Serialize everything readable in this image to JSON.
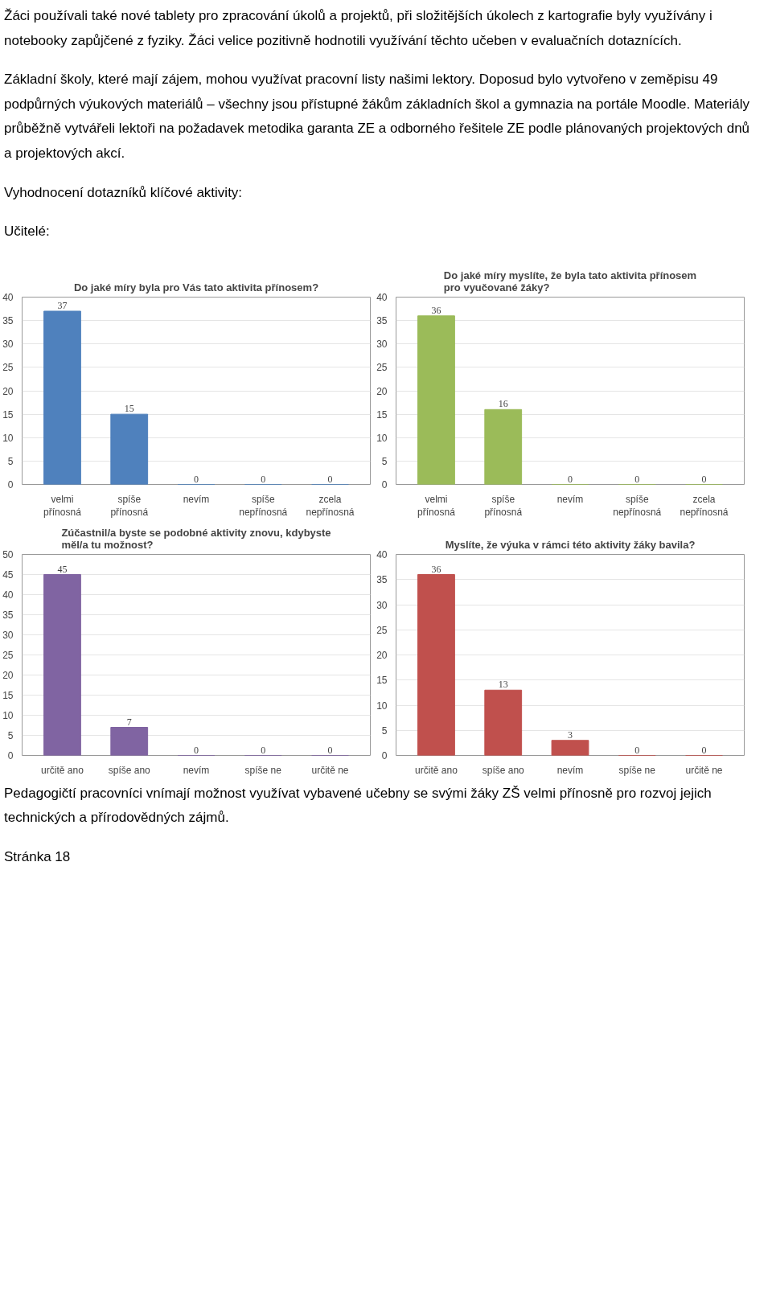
{
  "chart_data": [
    {
      "type": "bar",
      "title": "Do jaké míry byla pro Vás tato aktivita přínosem?",
      "categories": [
        "velmi přínosná",
        "spíše přínosná",
        "nevím",
        "spíše nepřínosná",
        "zcela nepřínosná"
      ],
      "values": [
        37,
        15,
        0,
        0,
        0
      ],
      "color": "#4f81bd",
      "ylim": [
        0,
        40
      ],
      "yticks": [
        0,
        5,
        10,
        15,
        20,
        25,
        30,
        35,
        40
      ],
      "grid": "y",
      "data_labels": true,
      "annotations": [
        "Žáci používali také nové tablety pro zpracování úkolů a projektů, při složitějších úkolech z kartografie byly využívány i notebooky zapůjčené z fyziky. Žáci velice pozitivně hodnotili využívání těchto učeben v evaluačních dotaznících.",
        "Základní školy, které mají zájem, mohou využívat pracovní listy našimi lektory. Doposud bylo vytvořeno v zeměpisu 49 podpůrných výukových materiálů – všechny jsou přístupné žákům základních škol a gymnazia na portále Moodle. Materiály průběžně vytvářeli lektoři na požadavek metodika garanta ZE a odborného řešitele ZE podle plánovaných projektových dnů a projektových akcí.",
        "Vyhodnocení dotazníků klíčové aktivity:",
        "Učitelé:"
      ]
    },
    {
      "type": "bar",
      "title": "Do jaké míry myslíte, že byla tato aktivita přínosem pro vyučované žáky?",
      "categories": [
        "velmi přínosná",
        "spíše přínosná",
        "nevím",
        "spíše nepřínosná",
        "zcela nepřínosná"
      ],
      "values": [
        36,
        16,
        0,
        0,
        0
      ],
      "color": "#9bbb59",
      "ylim": [
        0,
        40
      ],
      "yticks": [
        0,
        5,
        10,
        15,
        20,
        25,
        30,
        35,
        40
      ],
      "grid": "y",
      "data_labels": true
    },
    {
      "type": "bar",
      "title": "Zúčastnil/a byste se podobné aktivity znovu, kdybyste měl/a tu možnost?",
      "categories": [
        "určitě ano",
        "spíše ano",
        "nevím",
        "spíše ne",
        "určitě ne"
      ],
      "values": [
        45,
        7,
        0,
        0,
        0
      ],
      "color": "#8064a2",
      "ylim": [
        0,
        50
      ],
      "yticks": [
        0,
        5,
        10,
        15,
        20,
        25,
        30,
        35,
        40,
        45,
        50
      ],
      "grid": "y",
      "data_labels": true
    },
    {
      "type": "bar",
      "title": "Myslíte, že výuka v rámci této aktivity žáky bavila?",
      "categories": [
        "určitě ano",
        "spíše ano",
        "nevím",
        "spíše ne",
        "určitě ne"
      ],
      "values": [
        36,
        13,
        3,
        0,
        0
      ],
      "color": "#c0504d",
      "ylim": [
        0,
        40
      ],
      "yticks": [
        0,
        5,
        10,
        15,
        20,
        25,
        30,
        35,
        40
      ],
      "grid": "y",
      "data_labels": true,
      "annotations": [
        "Pedagogičtí pracovníci vnímají možnost využívat vybavené učebny se svými žáky ZŠ velmi přínosně pro rozvoj jejich technických a přírodovědných zájmů.",
        "Stránka 18"
      ]
    }
  ]
}
